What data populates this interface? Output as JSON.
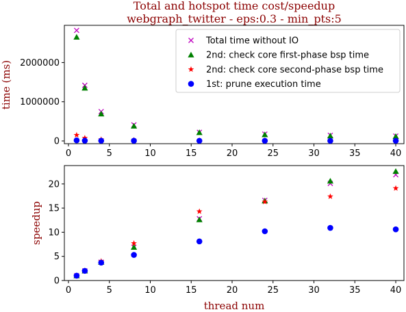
{
  "chart_data": [
    {
      "type": "scatter",
      "title": "Total and hotspot time cost/speedup",
      "subtitle": "webgraph_twitter - eps:0.3 - min_pts:5",
      "xlabel": "",
      "ylabel": "time (ms)",
      "xlim": [
        -0.5,
        41
      ],
      "ylim": [
        -70000,
        2950000
      ],
      "xticks": [
        0,
        5,
        10,
        15,
        20,
        25,
        30,
        35,
        40
      ],
      "yticks": [
        0,
        1000000,
        2000000
      ],
      "legend": "top-right",
      "x": [
        1,
        2,
        4,
        8,
        16,
        24,
        32,
        40
      ],
      "series": [
        {
          "name": "Total time without IO",
          "marker": "x",
          "color": "#bf00bf",
          "values": [
            2820000,
            1420000,
            750000,
            410000,
            220000,
            175000,
            145000,
            125000
          ]
        },
        {
          "name": "2nd: check core first-phase bsp time",
          "marker": "triangle",
          "color": "#008000",
          "values": [
            2650000,
            1350000,
            690000,
            380000,
            215000,
            160000,
            130000,
            115000
          ]
        },
        {
          "name": "2nd: check core second-phase bsp time",
          "marker": "star",
          "color": "#ff0000",
          "values": [
            150000,
            75000,
            38000,
            20000,
            11000,
            9000,
            9000,
            8000
          ]
        },
        {
          "name": "1st: prune execution time",
          "marker": "circle",
          "color": "#0000ff",
          "values": [
            15000,
            8000,
            6000,
            5000,
            4000,
            4000,
            4000,
            4000
          ]
        }
      ]
    },
    {
      "type": "scatter",
      "title": "",
      "xlabel": "thread num",
      "ylabel": "speedup",
      "xlim": [
        -0.5,
        41
      ],
      "ylim": [
        0,
        23.8
      ],
      "xticks": [
        0,
        5,
        10,
        15,
        20,
        25,
        30,
        35,
        40
      ],
      "yticks": [
        0,
        5,
        10,
        15,
        20
      ],
      "x": [
        1,
        2,
        4,
        8,
        16,
        24,
        32,
        40
      ],
      "series": [
        {
          "name": "Total time without IO",
          "marker": "x",
          "color": "#bf00bf",
          "values": [
            1.0,
            2.0,
            3.8,
            6.9,
            12.8,
            16.6,
            20.1,
            21.9
          ]
        },
        {
          "name": "2nd: check core first-phase bsp time",
          "marker": "triangle",
          "color": "#008000",
          "values": [
            1.0,
            2.0,
            3.8,
            6.9,
            12.6,
            16.5,
            20.6,
            22.6
          ]
        },
        {
          "name": "2nd: check core second-phase bsp time",
          "marker": "star",
          "color": "#ff0000",
          "values": [
            1.0,
            2.0,
            4.0,
            7.7,
            14.3,
            16.3,
            17.4,
            19.1
          ]
        },
        {
          "name": "1st: prune execution time",
          "marker": "circle",
          "color": "#0000ff",
          "values": [
            1.0,
            2.0,
            3.7,
            5.3,
            8.1,
            10.2,
            10.9,
            10.6
          ]
        }
      ]
    }
  ]
}
